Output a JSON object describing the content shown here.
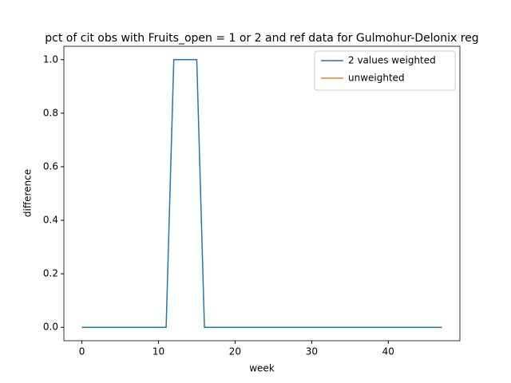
{
  "chart_data": {
    "type": "line",
    "title": "pct of cit obs with Fruits_open = 1 or 2 and ref data for Gulmohur-Delonix reg",
    "xlabel": "week",
    "ylabel": "difference",
    "x": [
      0,
      1,
      2,
      3,
      4,
      5,
      6,
      7,
      8,
      9,
      10,
      11,
      12,
      13,
      14,
      15,
      16,
      17,
      18,
      19,
      20,
      21,
      22,
      23,
      24,
      25,
      26,
      27,
      28,
      29,
      30,
      31,
      32,
      33,
      34,
      35,
      36,
      37,
      38,
      39,
      40,
      41,
      42,
      43,
      44,
      45,
      46,
      47
    ],
    "series": [
      {
        "name": "2 values weighted",
        "color": "#1f77b4",
        "values": [
          0,
          0,
          0,
          0,
          0,
          0,
          0,
          0,
          0,
          0,
          0,
          0,
          1,
          1,
          1,
          1,
          0,
          0,
          0,
          0,
          0,
          0,
          0,
          0,
          0,
          0,
          0,
          0,
          0,
          0,
          0,
          0,
          0,
          0,
          0,
          0,
          0,
          0,
          0,
          0,
          0,
          0,
          0,
          0,
          0,
          0,
          0,
          0
        ]
      },
      {
        "name": "unweighted",
        "color": "#ff7f0e",
        "values": [
          null,
          null,
          null,
          null,
          null,
          null,
          null,
          null,
          null,
          null,
          null,
          null,
          null,
          null,
          null,
          null,
          null,
          null,
          null,
          null,
          null,
          null,
          null,
          null,
          null,
          null,
          null,
          null,
          null,
          null,
          null,
          null,
          null,
          null,
          null,
          null,
          null,
          null,
          null,
          null,
          null,
          null,
          null,
          null,
          null,
          null,
          null,
          null
        ]
      }
    ],
    "xlim": [
      -2.35,
      49.35
    ],
    "xticks": [
      0,
      10,
      20,
      30,
      40
    ],
    "ylim": [
      -0.05,
      1.05
    ],
    "yticks": [
      {
        "value": 0,
        "label": "0.0"
      },
      0.2,
      0.4,
      0.6,
      0.8,
      {
        "value": 1,
        "label": "1.0"
      }
    ],
    "legend": "upper right"
  }
}
